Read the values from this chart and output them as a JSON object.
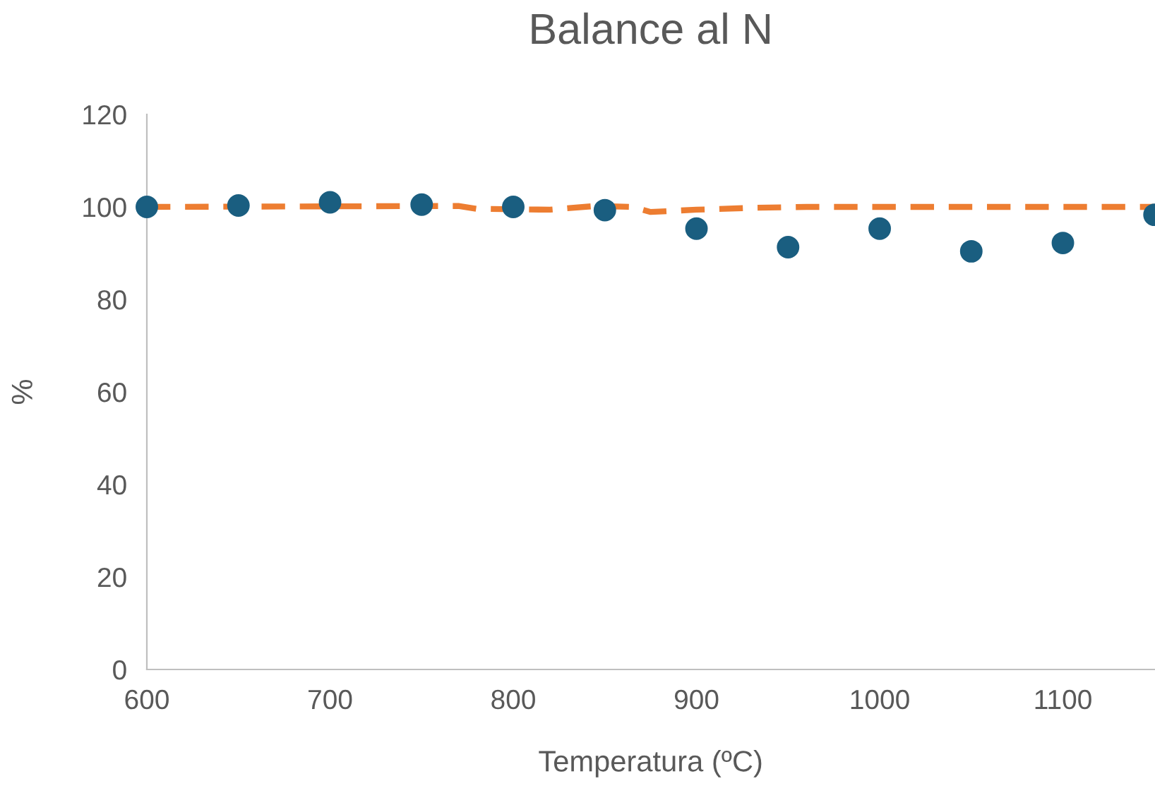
{
  "chart_data": {
    "type": "scatter",
    "title": "Balance al N",
    "xlabel": "Temperatura (ºC)",
    "ylabel": "%",
    "xlim": [
      600,
      1150
    ],
    "xticks": [
      600,
      700,
      800,
      900,
      1000,
      1100
    ],
    "ylim": [
      0,
      120
    ],
    "yticks": [
      0,
      20,
      40,
      60,
      80,
      100,
      120
    ],
    "grid": false,
    "legend": false,
    "series": [
      {
        "color": "#1a5e80",
        "marker": "circle",
        "x": [
          600,
          650,
          700,
          750,
          800,
          850,
          900,
          950,
          1000,
          1050,
          1100,
          1150
        ],
        "values": [
          100,
          100.3,
          101,
          100.5,
          100,
          99.3,
          95.3,
          91.3,
          95.3,
          90.4,
          92.2,
          98.3
        ]
      },
      {
        "type": "line",
        "color": "#ed7d31",
        "line_style": "dashed",
        "marker": "none",
        "x": [
          600,
          770,
          780,
          820,
          845,
          865,
          875,
          900,
          930,
          960,
          1150
        ],
        "values": [
          100,
          100.2,
          99.6,
          99.4,
          100.2,
          100,
          98.9,
          99.4,
          99.8,
          100,
          100
        ]
      }
    ]
  }
}
